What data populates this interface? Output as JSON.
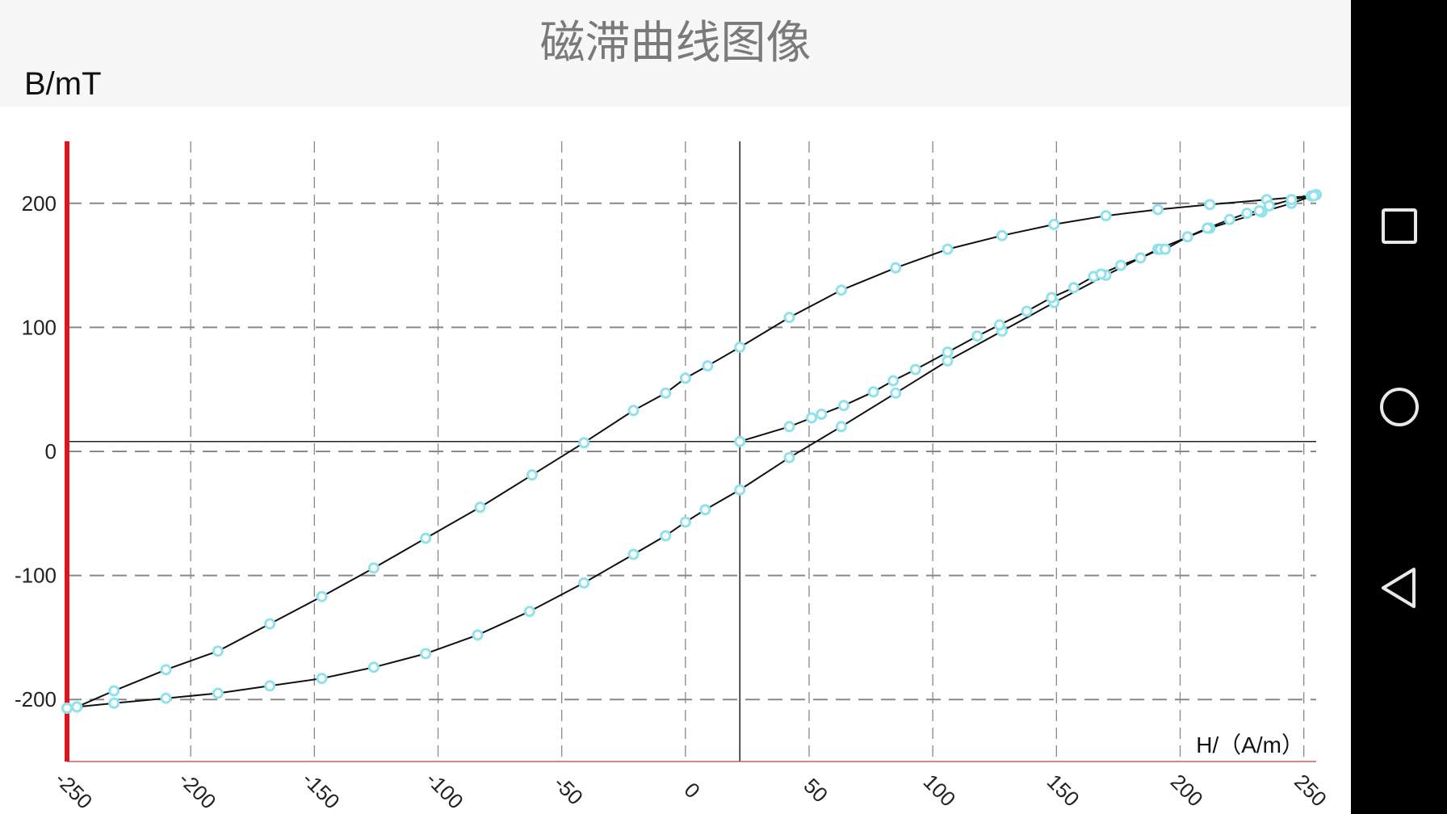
{
  "page": {
    "title": "磁滞曲线图像",
    "y_axis_label": "B/mT"
  },
  "navbar": {
    "icons": [
      "recent-apps-icon",
      "home-icon",
      "back-icon"
    ]
  },
  "chart_data": {
    "type": "line",
    "title": "磁滞曲线图像",
    "xlabel": "H/（A/m）",
    "ylabel": "B/mT",
    "xlim": [
      -250,
      255
    ],
    "ylim": [
      -250,
      250
    ],
    "x_ticks": [
      -250,
      -200,
      -150,
      -100,
      -50,
      0,
      50,
      100,
      150,
      200,
      250
    ],
    "y_ticks": [
      200,
      100,
      0,
      -100,
      -200
    ],
    "grid": true,
    "origin_lines": {
      "x": 22,
      "y": 8
    },
    "colors": {
      "line": "#111111",
      "marker": "#8fe2ec",
      "left_axis": "#e0141c",
      "grid": "#888888"
    },
    "series": [
      {
        "x": [
          255,
          253,
          235,
          212,
          191,
          170,
          149,
          128,
          106,
          85,
          63,
          42,
          22,
          9,
          0,
          -8,
          -21,
          -41,
          -62,
          -83,
          -105,
          -126,
          -147,
          -168,
          -189,
          -210,
          -231,
          -246,
          -250
        ],
        "y": [
          207,
          206,
          203,
          199,
          195,
          190,
          183,
          174,
          163,
          148,
          130,
          108,
          84,
          69,
          59,
          47,
          33,
          7,
          -19,
          -45,
          -70,
          -94,
          -117,
          -139,
          -161,
          -176,
          -193,
          -206,
          -207
        ]
      },
      {
        "x": [
          -250,
          -246,
          -231,
          -210,
          -189,
          -168,
          -147,
          -126,
          -105,
          -84,
          -63,
          -41,
          -21,
          -8,
          0,
          8,
          22,
          42,
          63,
          85,
          106,
          128,
          149,
          170,
          191,
          212,
          233,
          245,
          255
        ],
        "y": [
          -207,
          -206,
          -203,
          -199,
          -195,
          -189,
          -183,
          -174,
          -163,
          -148,
          -129,
          -106,
          -83,
          -68,
          -57,
          -47,
          -31,
          -5,
          20,
          47,
          73,
          97,
          120,
          142,
          163,
          180,
          193,
          200,
          207
        ]
      },
      {
        "x": [
          22,
          42,
          51,
          55,
          64,
          76,
          84,
          93,
          106,
          118,
          127,
          138,
          148,
          157,
          165,
          168,
          176,
          184,
          192,
          194,
          203,
          211,
          220,
          227,
          232,
          236,
          245,
          254
        ],
        "y": [
          8,
          20,
          27,
          30,
          37,
          48,
          57,
          66,
          80,
          93,
          102,
          113,
          124,
          132,
          141,
          143,
          150,
          156,
          163,
          163,
          173,
          180,
          187,
          192,
          194,
          198,
          203,
          206
        ]
      }
    ]
  }
}
